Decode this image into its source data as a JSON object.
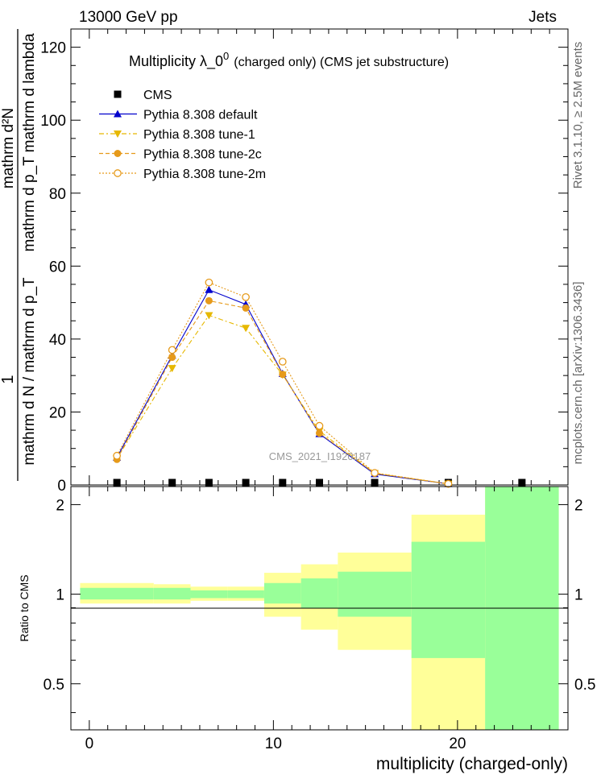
{
  "header": {
    "left": "13000 GeV pp",
    "right": "Jets"
  },
  "side_labels": {
    "rivet": "Rivet 3.1.10, ≥ 2.5M events",
    "mcplots": "mcplots.cern.ch [arXiv:1306.3436]"
  },
  "chart_data": [
    {
      "type": "line",
      "title": "Multiplicity  λ_0⁰ (charged only) (CMS jet substructure)",
      "title_main": "Multiplicity  λ_0",
      "title_sup": "0",
      "title_tail": "(charged only) (CMS jet substructure)",
      "watermark": "CMS_2021_I1920187",
      "ylabel": {
        "numerator": "1",
        "denominator": "mathrm d N / mathrm d p_T",
        "right_top": "mathrm d²N",
        "right_bottom": "mathrm d p_T mathrm d lambda"
      },
      "ylim": [
        0,
        125
      ],
      "yticks": [
        "0",
        "20",
        "40",
        "60",
        "80",
        "100",
        "120"
      ],
      "xlim": [
        -1,
        26
      ],
      "legend_position": "top-left",
      "series": [
        {
          "name": "CMS",
          "style": "data",
          "color": "#000000",
          "x": [
            1.5,
            4.5,
            6.5,
            8.5,
            10.5,
            12.5,
            15.5,
            19.5,
            23.5
          ],
          "values": [
            0.1,
            0.2,
            0.2,
            0.2,
            0.2,
            0.1,
            0.1,
            0.05,
            0.05
          ]
        },
        {
          "name": "Pythia 8.308 default",
          "style": "solid-triangle",
          "color": "#0000cc",
          "x": [
            1.5,
            4.5,
            6.5,
            8.5,
            10.5,
            12.5,
            15.5,
            19.5
          ],
          "values": [
            7.5,
            35.5,
            53.5,
            49.5,
            30.5,
            14.0,
            3.0,
            0.3
          ]
        },
        {
          "name": "Pythia 8.308 tune-1",
          "style": "dashdot-downtriangle",
          "color": "#e6b800",
          "x": [
            1.5,
            4.5,
            6.5,
            8.5,
            10.5,
            12.5,
            15.5,
            19.5
          ],
          "values": [
            7.2,
            32.0,
            46.5,
            43.0,
            30.2,
            14.8,
            3.2,
            0.3
          ]
        },
        {
          "name": "Pythia 8.308 tune-2c",
          "style": "dashed-circle",
          "color": "#e69a1a",
          "x": [
            1.5,
            4.5,
            6.5,
            8.5,
            10.5,
            12.5,
            15.5,
            19.5
          ],
          "values": [
            7.0,
            35.0,
            50.5,
            48.5,
            30.3,
            14.2,
            3.2,
            0.3
          ]
        },
        {
          "name": "Pythia 8.308 tune-2m",
          "style": "dotted-opencircle",
          "color": "#e69a1a",
          "x": [
            1.5,
            4.5,
            6.5,
            8.5,
            10.5,
            12.5,
            15.5,
            19.5
          ],
          "values": [
            8.0,
            37.0,
            55.5,
            51.5,
            33.8,
            16.2,
            3.3,
            0.3
          ]
        }
      ]
    },
    {
      "type": "area",
      "ylabel": "Ratio to CMS",
      "xlabel": "multiplicity (charged-only)",
      "ylim": [
        0.35,
        2.3
      ],
      "yticks": [
        "0.5",
        "1",
        "2"
      ],
      "xticks": [
        "0",
        "10",
        "20"
      ],
      "xlim": [
        -1,
        26
      ],
      "bands": [
        {
          "x0": -0.5,
          "x1": 3.5,
          "stat_lo": 0.96,
          "stat_hi": 1.05,
          "tot_lo": 0.93,
          "tot_hi": 1.09
        },
        {
          "x0": 3.5,
          "x1": 5.5,
          "stat_lo": 0.96,
          "stat_hi": 1.05,
          "tot_lo": 0.93,
          "tot_hi": 1.08
        },
        {
          "x0": 5.5,
          "x1": 7.5,
          "stat_lo": 0.97,
          "stat_hi": 1.03,
          "tot_lo": 0.95,
          "tot_hi": 1.06
        },
        {
          "x0": 7.5,
          "x1": 9.5,
          "stat_lo": 0.97,
          "stat_hi": 1.03,
          "tot_lo": 0.95,
          "tot_hi": 1.06
        },
        {
          "x0": 9.5,
          "x1": 11.5,
          "stat_lo": 0.93,
          "stat_hi": 1.09,
          "tot_lo": 0.84,
          "tot_hi": 1.18
        },
        {
          "x0": 11.5,
          "x1": 13.5,
          "stat_lo": 0.9,
          "stat_hi": 1.13,
          "tot_lo": 0.76,
          "tot_hi": 1.26
        },
        {
          "x0": 13.5,
          "x1": 17.5,
          "stat_lo": 0.84,
          "stat_hi": 1.19,
          "tot_lo": 0.65,
          "tot_hi": 1.38
        },
        {
          "x0": 17.5,
          "x1": 21.5,
          "stat_lo": 0.61,
          "stat_hi": 1.5,
          "tot_lo": 0.35,
          "tot_hi": 1.85
        },
        {
          "x0": 21.5,
          "x1": 25.5,
          "stat_lo": 0.35,
          "stat_hi": 2.3,
          "tot_lo": 0.35,
          "tot_hi": 2.3
        }
      ],
      "stat_color": "#99ff99",
      "total_color": "#ffff99"
    }
  ]
}
